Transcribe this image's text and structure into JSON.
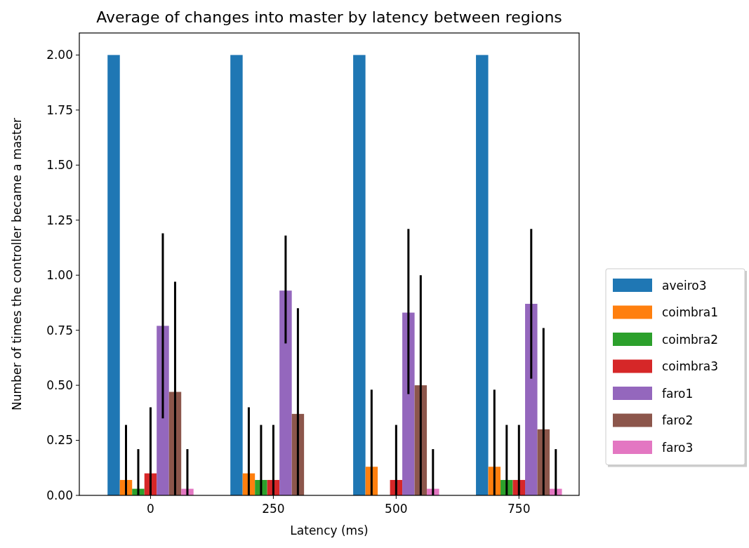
{
  "chart_data": {
    "type": "bar",
    "title": "Average of changes into master by latency between regions",
    "xlabel": "Latency (ms)",
    "ylabel": "Number of times the controller became a master",
    "categories": [
      "0",
      "250",
      "500",
      "750"
    ],
    "ylim": [
      0,
      2.1
    ],
    "yticks": [
      {
        "value": 0,
        "label": "0.00"
      },
      {
        "value": 0.25,
        "label": "0.25"
      },
      {
        "value": 0.5,
        "label": "0.50"
      },
      {
        "value": 0.75,
        "label": "0.75"
      },
      {
        "value": 1,
        "label": "1.00"
      },
      {
        "value": 1.25,
        "label": "1.25"
      },
      {
        "value": 1.5,
        "label": "1.50"
      },
      {
        "value": 1.75,
        "label": "1.75"
      },
      {
        "value": 2,
        "label": "2.00"
      }
    ],
    "legend": "right",
    "grid": false,
    "series": [
      {
        "name": "aveiro3",
        "color": "#1f77b4",
        "values": [
          2,
          2,
          2,
          2
        ]
      },
      {
        "name": "coimbra1",
        "color": "#ff7f0e",
        "values": [
          0.07,
          0.1,
          0.13,
          0.13
        ],
        "errors": [
          [
            0,
            0.32
          ],
          [
            0,
            0.4
          ],
          [
            0,
            0.48
          ],
          [
            0,
            0.48
          ]
        ]
      },
      {
        "name": "coimbra2",
        "color": "#2ca02c",
        "values": [
          0.03,
          0.07,
          0,
          0.07
        ],
        "errors": [
          [
            0,
            0.21
          ],
          [
            0,
            0.32
          ],
          null,
          [
            0,
            0.32
          ]
        ]
      },
      {
        "name": "coimbra3",
        "color": "#d62728",
        "values": [
          0.1,
          0.07,
          0.07,
          0.07
        ],
        "errors": [
          [
            0,
            0.4
          ],
          [
            0,
            0.32
          ],
          [
            0,
            0.32
          ],
          [
            0,
            0.32
          ]
        ]
      },
      {
        "name": "faro1",
        "color": "#9467bd",
        "values": [
          0.77,
          0.93,
          0.83,
          0.87
        ],
        "errors": [
          [
            0.35,
            1.19
          ],
          [
            0.69,
            1.18
          ],
          [
            0.46,
            1.21
          ],
          [
            0.53,
            1.21
          ]
        ]
      },
      {
        "name": "faro2",
        "color": "#8c564b",
        "values": [
          0.47,
          0.37,
          0.5,
          0.3
        ],
        "errors": [
          [
            0,
            0.97
          ],
          [
            0,
            0.85
          ],
          [
            0,
            1.0
          ],
          [
            0,
            0.76
          ]
        ]
      },
      {
        "name": "faro3",
        "color": "#e377c2",
        "values": [
          0.03,
          0,
          0.03,
          0.03
        ],
        "errors": [
          [
            0,
            0.21
          ],
          null,
          [
            0,
            0.21
          ],
          [
            0,
            0.21
          ]
        ]
      }
    ]
  }
}
